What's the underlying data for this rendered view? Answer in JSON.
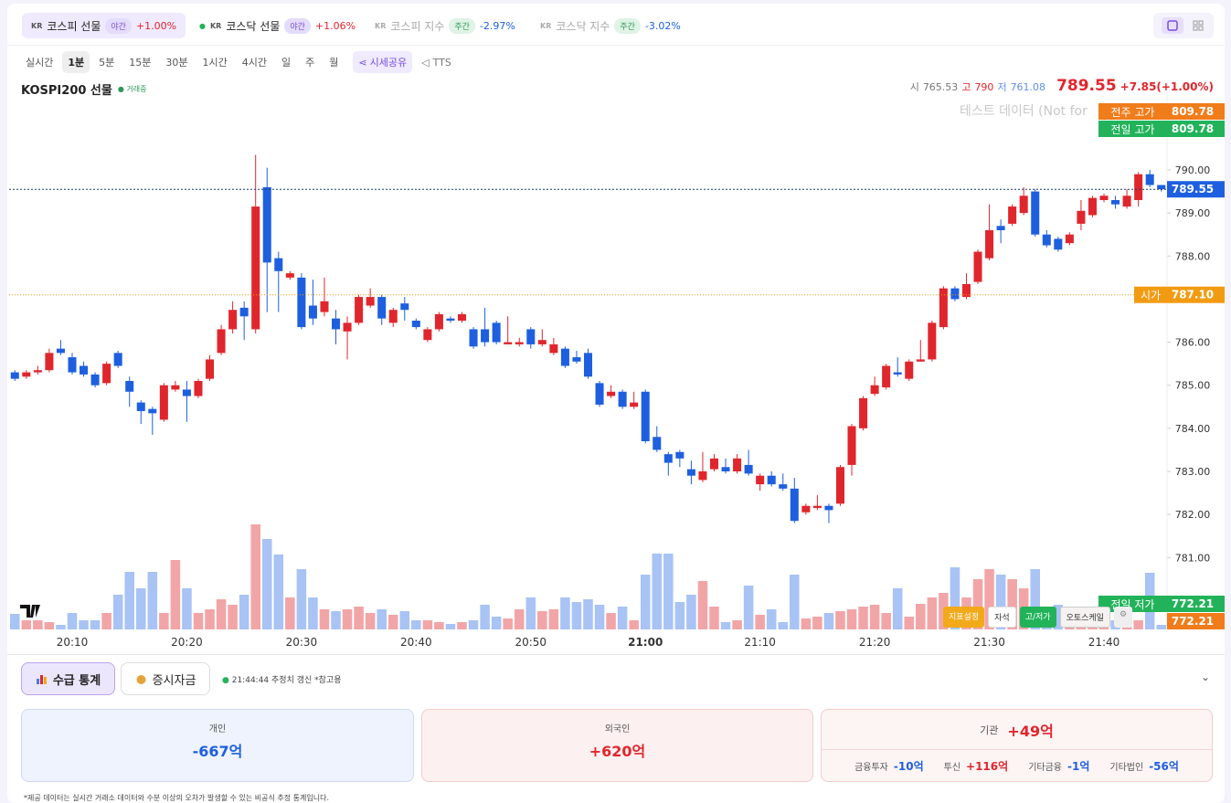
{
  "tickers": [
    {
      "flag": "KR",
      "name": "코스피 선물",
      "badge": "야간",
      "change": "+1.00%"
    },
    {
      "flag": "KR",
      "name": "코스닥 선물",
      "badge": "야간",
      "change": "+1.06%"
    },
    {
      "flag": "KR",
      "name": "코스피 지수",
      "badge": "주간",
      "change": "-2.97%"
    },
    {
      "flag": "KR",
      "name": "코스닥 지수",
      "badge": "주간",
      "change": "-3.02%"
    }
  ],
  "timeframes": [
    "실시간",
    "1분",
    "5분",
    "15분",
    "30분",
    "1시간",
    "4시간",
    "일",
    "주",
    "월"
  ],
  "share": "시세공유",
  "tts": "TTS",
  "chart_data": {
    "type": "candlestick",
    "title": "KOSPI200 선물",
    "status": "거래중",
    "summary": {
      "open_label": "시",
      "open": 765.53,
      "high_label": "고",
      "high": 790,
      "low_label": "저",
      "low": 761.08,
      "last": 789.55,
      "change": "+7.85(+1.00%)"
    },
    "watermark": "테스트 데이터 (Not for",
    "categories": [
      null,
      null,
      null,
      null,
      null,
      "20:10",
      null,
      null,
      null,
      null,
      null,
      null,
      null,
      null,
      null,
      "20:20",
      null,
      null,
      null,
      null,
      null,
      null,
      null,
      null,
      null,
      "20:30",
      null,
      null,
      null,
      null,
      null,
      null,
      null,
      null,
      null,
      "20:40",
      null,
      null,
      null,
      null,
      null,
      null,
      null,
      null,
      null,
      "20:50",
      null,
      null,
      null,
      null,
      null,
      null,
      null,
      null,
      null,
      "21:00",
      null,
      null,
      null,
      null,
      null,
      null,
      null,
      null,
      null,
      "21:10",
      null,
      null,
      null,
      null,
      null,
      null,
      null,
      null,
      null,
      "21:20",
      null,
      null,
      null,
      null,
      null,
      null,
      null,
      null,
      null,
      "21:30",
      null,
      null,
      null,
      null,
      null,
      null,
      null,
      null,
      null,
      "21:40",
      null,
      null,
      null,
      null,
      null
    ],
    "open": [
      785.3,
      785.2,
      785.3,
      785.35,
      785.85,
      785.65,
      785.45,
      785.25,
      785.05,
      785.75,
      785.1,
      784.6,
      784.45,
      784.2,
      784.9,
      784.9,
      784.75,
      785.15,
      785.75,
      786.3,
      786.8,
      786.3,
      789.6,
      787.95,
      787.5,
      787.5,
      786.85,
      786.7,
      786.55,
      786.25,
      786.45,
      786.85,
      787.05,
      786.45,
      786.9,
      786.5,
      786.05,
      786.3,
      786.55,
      786.5,
      786.3,
      786.3,
      786.45,
      785.95,
      785.95,
      786.3,
      785.95,
      785.75,
      785.85,
      785.65,
      785.75,
      785.05,
      784.75,
      784.85,
      784.5,
      784.85,
      783.8,
      783.4,
      783.45,
      783.05,
      782.8,
      783.05,
      783.1,
      783,
      783.15,
      782.7,
      782.9,
      782.7,
      782.6,
      782.05,
      782.15,
      782.2,
      782.25,
      783.15,
      784,
      784.8,
      784.95,
      785.3,
      785.15,
      785.55,
      785.6,
      786.35,
      787.25,
      787.05,
      787.4,
      787.95,
      788.7,
      788.75,
      789,
      789.5,
      788.5,
      788.4,
      788.3,
      788.75,
      788.95,
      789.3,
      789.3,
      789.15,
      789.3,
      789.9,
      789.65
    ],
    "high": [
      785.35,
      785.35,
      785.45,
      785.85,
      786.05,
      785.75,
      785.55,
      785.3,
      785.55,
      785.8,
      785.2,
      784.65,
      784.5,
      785.05,
      785.1,
      785.1,
      785.15,
      785.7,
      786.4,
      786.95,
      786.95,
      790.35,
      790.05,
      788.1,
      787.65,
      787.6,
      787.45,
      787.5,
      786.75,
      786.6,
      787.1,
      787.25,
      787.1,
      786.8,
      787.05,
      786.55,
      786.35,
      786.7,
      786.6,
      786.7,
      786.35,
      786.8,
      786.5,
      786.6,
      786.1,
      786.35,
      786.3,
      786.1,
      785.9,
      785.8,
      785.85,
      785.1,
      785,
      784.9,
      784.85,
      784.9,
      784.05,
      783.45,
      783.5,
      783.25,
      783.45,
      783.4,
      783.3,
      783.4,
      783.5,
      782.95,
      783,
      782.95,
      782.85,
      782.25,
      782.45,
      782.25,
      783.15,
      784.1,
      784.75,
      785.2,
      785.5,
      785.65,
      785.6,
      786.05,
      786.5,
      787.3,
      787.3,
      787.6,
      788.15,
      789.2,
      788.85,
      789.2,
      789.6,
      789.55,
      788.6,
      788.45,
      788.55,
      789.3,
      789.4,
      789.45,
      789.4,
      789.55,
      789.95,
      790,
      789.65
    ],
    "low": [
      785.1,
      785.15,
      785.25,
      785.3,
      785.7,
      785.25,
      785.2,
      784.95,
      785,
      785.4,
      784.5,
      784.1,
      783.85,
      784.15,
      784.85,
      784.15,
      784.7,
      785.1,
      785.7,
      786.2,
      786.05,
      786.2,
      786.7,
      786.7,
      787.45,
      786.3,
      786.4,
      786.6,
      785.95,
      785.6,
      786.4,
      786.8,
      786.4,
      786.35,
      786.5,
      786.3,
      786,
      786.25,
      786.45,
      786.45,
      785.85,
      785.9,
      785.95,
      785.95,
      785.9,
      785.85,
      785.9,
      785.7,
      785.4,
      785.5,
      785.15,
      784.5,
      784.7,
      784.45,
      784.45,
      783.65,
      783.45,
      782.9,
      783.1,
      782.7,
      782.75,
      783,
      782.95,
      782.95,
      782.9,
      782.55,
      782.65,
      782.55,
      781.8,
      782,
      782.1,
      781.8,
      782.2,
      782.9,
      783.95,
      784.75,
      784.9,
      785.2,
      785.1,
      785.55,
      785.55,
      786.3,
      786.95,
      787,
      787.35,
      787.9,
      788.3,
      788.7,
      788.95,
      788.45,
      788.2,
      788.1,
      788.25,
      788.6,
      788.9,
      789.25,
      789.1,
      789.1,
      789.15,
      789.6,
      789.5
    ],
    "close": [
      785.15,
      785.3,
      785.35,
      785.75,
      785.75,
      785.3,
      785.25,
      785,
      785.5,
      785.45,
      784.85,
      784.4,
      784.35,
      785,
      785,
      784.75,
      785.1,
      785.6,
      786.3,
      786.75,
      786.6,
      789.15,
      787.85,
      787.65,
      787.6,
      786.35,
      786.55,
      786.95,
      786.3,
      786.45,
      787.05,
      787.05,
      786.55,
      786.75,
      786.75,
      786.35,
      786.3,
      786.65,
      786.5,
      786.65,
      785.9,
      786,
      786,
      786,
      786,
      785.95,
      786.05,
      785.95,
      785.45,
      785.55,
      785.2,
      784.55,
      784.85,
      784.5,
      784.6,
      783.7,
      783.5,
      783.2,
      783.3,
      782.9,
      783,
      783.3,
      783,
      783.3,
      782.95,
      782.9,
      782.7,
      782.6,
      781.85,
      782.2,
      782.2,
      782.1,
      783.1,
      784.05,
      784.7,
      785,
      785.45,
      785.25,
      785.55,
      785.6,
      786.45,
      787.25,
      787,
      787.35,
      788.1,
      788.6,
      788.6,
      789.15,
      789.4,
      788.5,
      788.25,
      788.15,
      788.5,
      789.05,
      789.35,
      789.4,
      789.2,
      789.4,
      789.9,
      789.65,
      789.55
    ],
    "volume": [
      17,
      10,
      10,
      8,
      5,
      18,
      10,
      10,
      18,
      38,
      63,
      45,
      63,
      18,
      76,
      45,
      18,
      22,
      33,
      27,
      38,
      115,
      99,
      82,
      35,
      66,
      35,
      22,
      20,
      22,
      25,
      18,
      22,
      16,
      20,
      10,
      10,
      8,
      6,
      8,
      10,
      27,
      14,
      12,
      22,
      35,
      20,
      22,
      35,
      30,
      33,
      27,
      18,
      25,
      10,
      60,
      83,
      83,
      30,
      38,
      53,
      25,
      8,
      10,
      48,
      16,
      22,
      8,
      60,
      12,
      14,
      18,
      20,
      22,
      25,
      27,
      18,
      45,
      14,
      28,
      35,
      40,
      68,
      35,
      55,
      66,
      60,
      55,
      45,
      66,
      25,
      27,
      22,
      18,
      20,
      15,
      10,
      20,
      10,
      62,
      5
    ],
    "up_color": "#e0262d",
    "down_color": "#1e5fe0",
    "volume_up_color": "#f2a5a7",
    "volume_down_color": "#a8c3f4",
    "ylim": [
      779.33,
      791.57
    ],
    "yticks": [
      {
        "value": 781,
        "label": "781.00"
      },
      {
        "value": 782,
        "label": "782.00"
      },
      {
        "value": 783,
        "label": "783.00"
      },
      {
        "value": 784,
        "label": "784.00"
      },
      {
        "value": 785,
        "label": "785.00"
      },
      {
        "value": 786,
        "label": "786.00"
      },
      {
        "value": 787,
        "label": "787.00"
      },
      {
        "value": 788,
        "label": "788.00"
      },
      {
        "value": 789,
        "label": "789.00"
      },
      {
        "value": 790,
        "label": "790.00"
      }
    ],
    "current": {
      "value": 789.55,
      "label": "789.55",
      "color": "#1e5fe0"
    },
    "levels": [
      {
        "name": "전주 고가",
        "price": {
          "value": 809.78,
          "label": "809.78"
        },
        "color": "#f07c1a"
      },
      {
        "name": "전일 고가",
        "price": {
          "value": 809.78,
          "label": "809.78"
        },
        "color": "#22b35a"
      },
      {
        "name": "시가",
        "price": {
          "value": 787.1,
          "label": "787.10"
        },
        "color": "#f29b12"
      },
      {
        "name": "전일 저가",
        "price": {
          "value": 772.21,
          "label": "772.21"
        },
        "color": "#22b35a"
      },
      {
        "price": {
          "value": 772.21,
          "label": "772.21"
        },
        "color": "#f07c1a"
      }
    ],
    "tools": [
      "지표설정",
      "자석",
      "고/저가",
      "오토스케일"
    ]
  },
  "panel": {
    "tabs": [
      "수급 통계",
      "증시자금"
    ],
    "update": "21:44:44 추정치 갱신 *참고용",
    "cards": [
      {
        "label": "개인",
        "value": "-667억"
      },
      {
        "label": "외국인",
        "value": "+620억"
      },
      {
        "label": "기관",
        "value": "+49억",
        "details": [
          {
            "label": "금융투자",
            "value": "-10억"
          },
          {
            "label": "투신",
            "value": "+116억"
          },
          {
            "label": "기타금융",
            "value": "-1억"
          },
          {
            "label": "기타법인",
            "value": "-56억"
          }
        ]
      }
    ],
    "footnote": "*제공 데이터는 실시간 거래소 데이터와 수분 이상의 오차가 발생할 수 있는 비공식 추정 통계입니다."
  }
}
